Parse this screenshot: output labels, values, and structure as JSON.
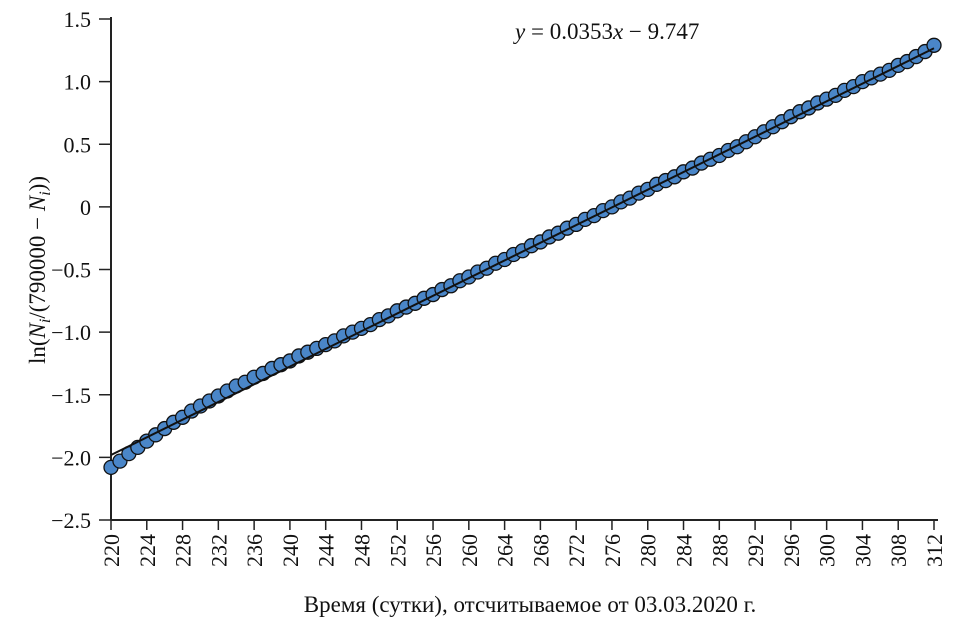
{
  "chart_data": {
    "type": "scatter",
    "title": "",
    "xlabel": "Время (сутки), отсчитываемое от 03.03.2020 г.",
    "ylabel": {
      "prefix": "ln(",
      "N1": "N",
      "sub1": "i",
      "mid": "/(790000 − ",
      "N2": "N",
      "sub2": "i",
      "suffix": "))"
    },
    "xlim": [
      220,
      312
    ],
    "ylim": [
      -2.5,
      1.5
    ],
    "xticks": [
      "220",
      "224",
      "228",
      "232",
      "236",
      "240",
      "244",
      "248",
      "252",
      "256",
      "260",
      "264",
      "268",
      "272",
      "276",
      "280",
      "284",
      "288",
      "292",
      "296",
      "300",
      "304",
      "308",
      "312"
    ],
    "yticks": [
      "1.5",
      "1.0",
      "0.5",
      "0",
      "−0.5",
      "−1.0",
      "−1.5",
      "−2.0",
      "−2.5"
    ],
    "grid": false,
    "annotation": {
      "y": "y",
      "eq": " = 0.0353",
      "x": "x",
      "rest": " − 9.747"
    },
    "fit": {
      "slope": 0.0353,
      "intercept": -9.747
    },
    "marker_color": "#4a86c8",
    "x": [
      220,
      221,
      222,
      223,
      224,
      225,
      226,
      227,
      228,
      229,
      230,
      231,
      232,
      233,
      234,
      235,
      236,
      237,
      238,
      239,
      240,
      241,
      242,
      243,
      244,
      245,
      246,
      247,
      248,
      249,
      250,
      251,
      252,
      253,
      254,
      255,
      256,
      257,
      258,
      259,
      260,
      261,
      262,
      263,
      264,
      265,
      266,
      267,
      268,
      269,
      270,
      271,
      272,
      273,
      274,
      275,
      276,
      277,
      278,
      279,
      280,
      281,
      282,
      283,
      284,
      285,
      286,
      287,
      288,
      289,
      290,
      291,
      292,
      293,
      294,
      295,
      296,
      297,
      298,
      299,
      300,
      301,
      302,
      303,
      304,
      305,
      306,
      307,
      308,
      309,
      310,
      311,
      312
    ],
    "y": [
      -2.08,
      -2.03,
      -1.97,
      -1.92,
      -1.87,
      -1.82,
      -1.77,
      -1.72,
      -1.68,
      -1.63,
      -1.59,
      -1.55,
      -1.51,
      -1.47,
      -1.43,
      -1.4,
      -1.36,
      -1.33,
      -1.29,
      -1.26,
      -1.23,
      -1.19,
      -1.16,
      -1.13,
      -1.1,
      -1.07,
      -1.03,
      -1.0,
      -0.97,
      -0.94,
      -0.9,
      -0.87,
      -0.83,
      -0.8,
      -0.77,
      -0.73,
      -0.7,
      -0.66,
      -0.63,
      -0.59,
      -0.56,
      -0.52,
      -0.49,
      -0.45,
      -0.42,
      -0.38,
      -0.35,
      -0.31,
      -0.28,
      -0.24,
      -0.21,
      -0.17,
      -0.14,
      -0.1,
      -0.07,
      -0.03,
      0.0,
      0.04,
      0.07,
      0.11,
      0.14,
      0.18,
      0.21,
      0.24,
      0.28,
      0.31,
      0.35,
      0.38,
      0.41,
      0.45,
      0.48,
      0.52,
      0.56,
      0.6,
      0.64,
      0.68,
      0.72,
      0.76,
      0.79,
      0.83,
      0.86,
      0.89,
      0.93,
      0.96,
      1.0,
      1.03,
      1.06,
      1.09,
      1.13,
      1.16,
      1.2,
      1.24,
      1.29
    ]
  }
}
